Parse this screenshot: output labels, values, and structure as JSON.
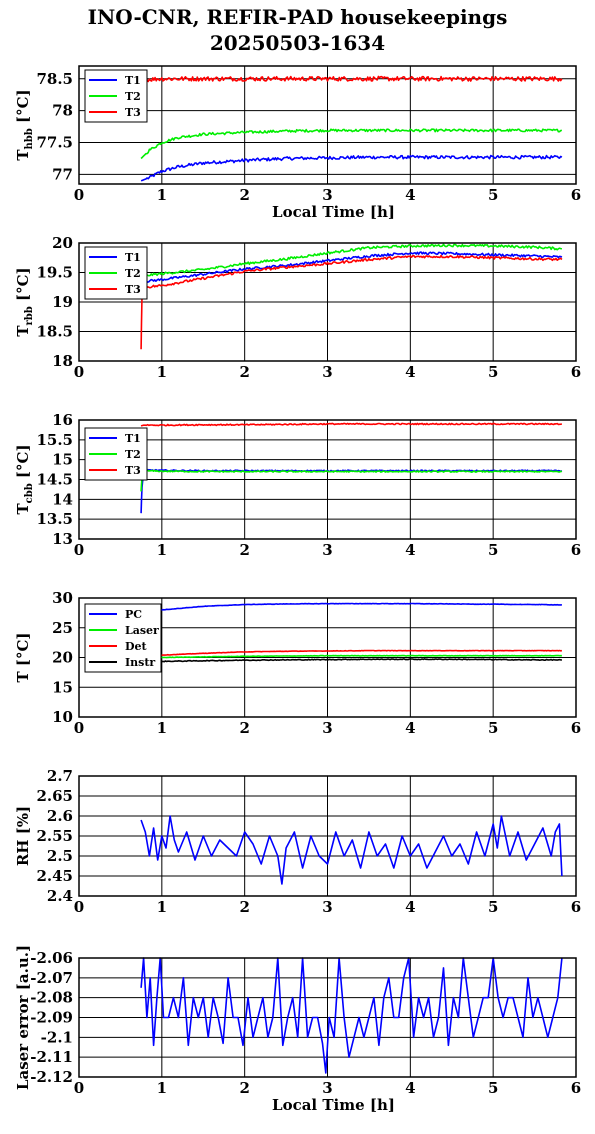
{
  "title_line1": "INO-CNR, REFIR-PAD housekeepings",
  "title_line2": "20250503-1634",
  "colors": {
    "blue": "#0000ff",
    "green": "#00ee00",
    "red": "#ff0000",
    "black": "#000000"
  },
  "chart_data": [
    {
      "type": "line",
      "ylabel_main": "T",
      "ylabel_sub": "hbb",
      "ylabel_unit": " [°C]",
      "xlabel": "Local Time [h]",
      "xlim": [
        0,
        6
      ],
      "ylim": [
        76.85,
        78.7
      ],
      "xticks": [
        0,
        1,
        2,
        3,
        4,
        5,
        6
      ],
      "yticks": [
        77,
        77.5,
        78,
        78.5
      ],
      "ytick_labels": [
        "77",
        "77.5",
        "78",
        "78.5"
      ],
      "x": [
        0.75,
        0.85,
        1.0,
        1.2,
        1.5,
        2.0,
        2.5,
        3.0,
        3.5,
        4.0,
        4.5,
        5.0,
        5.5,
        5.83
      ],
      "series": [
        {
          "name": "T1",
          "color": "#0000ff",
          "noise": 0.025,
          "values": [
            76.9,
            76.95,
            77.05,
            77.12,
            77.18,
            77.22,
            77.25,
            77.26,
            77.27,
            77.27,
            77.27,
            77.27,
            77.27,
            77.27
          ]
        },
        {
          "name": "T2",
          "color": "#00ee00",
          "noise": 0.02,
          "values": [
            77.25,
            77.38,
            77.5,
            77.58,
            77.63,
            77.66,
            77.68,
            77.69,
            77.69,
            77.69,
            77.69,
            77.69,
            77.69,
            77.69
          ]
        },
        {
          "name": "T3",
          "color": "#ff0000",
          "noise": 0.035,
          "values": [
            78.48,
            78.49,
            78.5,
            78.5,
            78.5,
            78.5,
            78.5,
            78.5,
            78.5,
            78.5,
            78.5,
            78.5,
            78.5,
            78.5
          ]
        }
      ]
    },
    {
      "type": "line",
      "ylabel_main": "T",
      "ylabel_sub": "rbb",
      "ylabel_unit": " [°C]",
      "xlabel": "",
      "xlim": [
        0,
        6
      ],
      "ylim": [
        18,
        20
      ],
      "xticks": [
        0,
        1,
        2,
        3,
        4,
        5,
        6
      ],
      "yticks": [
        18,
        18.5,
        19,
        19.5,
        20
      ],
      "ytick_labels": [
        "18",
        "18.5",
        "19",
        "19.5",
        "20"
      ],
      "x": [
        0.75,
        0.76,
        0.8,
        1.0,
        1.5,
        2.0,
        2.5,
        3.0,
        3.5,
        4.0,
        4.5,
        5.0,
        5.5,
        5.83
      ],
      "series": [
        {
          "name": "T1",
          "color": "#0000ff",
          "noise": 0.02,
          "values": [
            19.35,
            19.3,
            19.35,
            19.38,
            19.47,
            19.56,
            19.62,
            19.7,
            19.78,
            19.83,
            19.82,
            19.8,
            19.78,
            19.76
          ]
        },
        {
          "name": "T2",
          "color": "#00ee00",
          "noise": 0.02,
          "values": [
            19.4,
            19.45,
            19.45,
            19.48,
            19.55,
            19.65,
            19.73,
            19.83,
            19.92,
            19.95,
            19.96,
            19.95,
            19.93,
            19.9
          ]
        },
        {
          "name": "T3",
          "color": "#ff0000",
          "noise": 0.02,
          "values": [
            18.2,
            19.1,
            19.25,
            19.28,
            19.4,
            19.52,
            19.59,
            19.65,
            19.72,
            19.77,
            19.77,
            19.75,
            19.73,
            19.72
          ]
        }
      ]
    },
    {
      "type": "line",
      "ylabel_main": "T",
      "ylabel_sub": "cbb",
      "ylabel_unit": " [°C]",
      "xlabel": "",
      "xlim": [
        0,
        6
      ],
      "ylim": [
        13,
        16
      ],
      "xticks": [
        0,
        1,
        2,
        3,
        4,
        5,
        6
      ],
      "yticks": [
        13,
        13.5,
        14,
        14.5,
        15,
        15.5,
        16
      ],
      "ytick_labels": [
        "13",
        "13.5",
        "14",
        "14.5",
        "15",
        "15.5",
        "16"
      ],
      "x": [
        0.75,
        0.76,
        0.78,
        0.8,
        1.0,
        1.5,
        2.0,
        2.5,
        3.0,
        3.5,
        4.0,
        4.5,
        5.0,
        5.5,
        5.83
      ],
      "series": [
        {
          "name": "T1",
          "color": "#0000ff",
          "noise": 0.015,
          "values": [
            13.65,
            14.3,
            14.7,
            14.74,
            14.73,
            14.72,
            14.72,
            14.72,
            14.72,
            14.72,
            14.72,
            14.72,
            14.72,
            14.72,
            14.72
          ]
        },
        {
          "name": "T2",
          "color": "#00ee00",
          "noise": 0.015,
          "values": [
            14.2,
            14.55,
            14.7,
            14.72,
            14.71,
            14.7,
            14.7,
            14.7,
            14.7,
            14.7,
            14.7,
            14.7,
            14.7,
            14.7,
            14.7
          ]
        },
        {
          "name": "T3",
          "color": "#ff0000",
          "noise": 0.015,
          "values": [
            15.85,
            15.86,
            15.87,
            15.87,
            15.87,
            15.88,
            15.88,
            15.89,
            15.9,
            15.9,
            15.9,
            15.9,
            15.9,
            15.9,
            15.9
          ]
        }
      ]
    },
    {
      "type": "line",
      "ylabel_main": "T [°C]",
      "ylabel_sub": "",
      "ylabel_unit": "",
      "xlabel": "",
      "xlim": [
        0,
        6
      ],
      "ylim": [
        10,
        30
      ],
      "xticks": [
        0,
        1,
        2,
        3,
        4,
        5,
        6
      ],
      "yticks": [
        10,
        15,
        20,
        25,
        30
      ],
      "ytick_labels": [
        "10",
        "15",
        "20",
        "25",
        "30"
      ],
      "x": [
        0.75,
        1.0,
        1.5,
        2.0,
        2.5,
        3.0,
        3.5,
        4.0,
        4.5,
        5.0,
        5.5,
        5.83
      ],
      "series": [
        {
          "name": "PC",
          "color": "#0000ff",
          "noise": 0.03,
          "values": [
            27.5,
            28.0,
            28.6,
            28.9,
            29.0,
            29.05,
            29.05,
            29.05,
            29.0,
            28.95,
            28.9,
            28.85
          ]
        },
        {
          "name": "Laser",
          "color": "#00ee00",
          "noise": 0.03,
          "values": [
            19.9,
            20.0,
            20.1,
            20.2,
            20.25,
            20.3,
            20.3,
            20.3,
            20.3,
            20.3,
            20.3,
            20.3
          ]
        },
        {
          "name": "Det",
          "color": "#ff0000",
          "noise": 0.03,
          "values": [
            20.2,
            20.4,
            20.7,
            20.95,
            21.05,
            21.1,
            21.15,
            21.15,
            21.15,
            21.15,
            21.15,
            21.15
          ]
        },
        {
          "name": "Instr",
          "color": "#000000",
          "noise": 0.06,
          "values": [
            19.3,
            19.35,
            19.45,
            19.55,
            19.6,
            19.65,
            19.7,
            19.7,
            19.7,
            19.65,
            19.6,
            19.6
          ]
        }
      ]
    },
    {
      "type": "line",
      "ylabel_main": "RH [%]",
      "ylabel_sub": "",
      "ylabel_unit": "",
      "xlabel": "",
      "xlim": [
        0,
        6
      ],
      "ylim": [
        2.4,
        2.7
      ],
      "xticks": [
        0,
        1,
        2,
        3,
        4,
        5,
        6
      ],
      "yticks": [
        2.4,
        2.45,
        2.5,
        2.55,
        2.6,
        2.65,
        2.7
      ],
      "ytick_labels": [
        "2.4",
        "2.45",
        "2.5",
        "2.55",
        "2.6",
        "2.65",
        "2.7"
      ],
      "x": [
        0.75,
        0.8,
        0.85,
        0.9,
        0.95,
        1.0,
        1.05,
        1.1,
        1.15,
        1.2,
        1.3,
        1.4,
        1.5,
        1.6,
        1.7,
        1.8,
        1.9,
        2.0,
        2.1,
        2.2,
        2.3,
        2.4,
        2.45,
        2.5,
        2.6,
        2.7,
        2.8,
        2.9,
        3.0,
        3.1,
        3.2,
        3.3,
        3.4,
        3.5,
        3.6,
        3.7,
        3.8,
        3.9,
        4.0,
        4.1,
        4.2,
        4.3,
        4.4,
        4.5,
        4.6,
        4.7,
        4.8,
        4.9,
        5.0,
        5.05,
        5.1,
        5.2,
        5.3,
        5.4,
        5.5,
        5.6,
        5.7,
        5.75,
        5.8,
        5.83
      ],
      "series": [
        {
          "name": "RH",
          "color": "#0000ff",
          "noise": 0,
          "values": [
            2.59,
            2.56,
            2.5,
            2.57,
            2.49,
            2.55,
            2.52,
            2.6,
            2.54,
            2.51,
            2.56,
            2.49,
            2.55,
            2.5,
            2.54,
            2.52,
            2.5,
            2.56,
            2.53,
            2.48,
            2.55,
            2.5,
            2.43,
            2.52,
            2.56,
            2.47,
            2.55,
            2.5,
            2.48,
            2.56,
            2.5,
            2.54,
            2.47,
            2.56,
            2.5,
            2.53,
            2.47,
            2.55,
            2.5,
            2.53,
            2.47,
            2.51,
            2.55,
            2.5,
            2.53,
            2.48,
            2.56,
            2.5,
            2.58,
            2.52,
            2.6,
            2.5,
            2.56,
            2.49,
            2.53,
            2.57,
            2.5,
            2.56,
            2.58,
            2.45
          ]
        }
      ]
    },
    {
      "type": "line",
      "ylabel_main": "Laser error [a.u.]",
      "ylabel_sub": "",
      "ylabel_unit": "",
      "xlabel": "Local Time [h]",
      "xlim": [
        0,
        6
      ],
      "ylim": [
        -2.12,
        -2.06
      ],
      "xticks": [
        0,
        1,
        2,
        3,
        4,
        5,
        6
      ],
      "yticks": [
        -2.12,
        -2.11,
        -2.1,
        -2.09,
        -2.08,
        -2.07,
        -2.06
      ],
      "ytick_labels": [
        "-2.12",
        "-2.11",
        "-2.1",
        "-2.09",
        "-2.08",
        "-2.07",
        "-2.06"
      ],
      "x": [
        0.75,
        0.78,
        0.82,
        0.86,
        0.9,
        0.94,
        0.98,
        1.02,
        1.08,
        1.14,
        1.2,
        1.26,
        1.32,
        1.38,
        1.44,
        1.5,
        1.56,
        1.62,
        1.68,
        1.74,
        1.8,
        1.86,
        1.92,
        1.98,
        2.04,
        2.1,
        2.16,
        2.22,
        2.28,
        2.34,
        2.4,
        2.46,
        2.52,
        2.58,
        2.64,
        2.7,
        2.76,
        2.82,
        2.88,
        2.94,
        2.98,
        3.02,
        3.08,
        3.14,
        3.2,
        3.26,
        3.32,
        3.38,
        3.44,
        3.5,
        3.56,
        3.62,
        3.68,
        3.74,
        3.8,
        3.86,
        3.92,
        3.98,
        4.04,
        4.1,
        4.16,
        4.22,
        4.28,
        4.34,
        4.4,
        4.46,
        4.52,
        4.58,
        4.64,
        4.7,
        4.76,
        4.82,
        4.88,
        4.94,
        5.0,
        5.06,
        5.12,
        5.18,
        5.24,
        5.3,
        5.36,
        5.42,
        5.48,
        5.54,
        5.6,
        5.66,
        5.72,
        5.78,
        5.83
      ],
      "series": [
        {
          "name": "Laser",
          "color": "#0000ff",
          "noise": 0,
          "values": [
            -2.075,
            -2.06,
            -2.09,
            -2.07,
            -2.104,
            -2.08,
            -2.06,
            -2.09,
            -2.09,
            -2.08,
            -2.09,
            -2.07,
            -2.104,
            -2.08,
            -2.09,
            -2.08,
            -2.1,
            -2.08,
            -2.09,
            -2.103,
            -2.07,
            -2.09,
            -2.09,
            -2.104,
            -2.08,
            -2.1,
            -2.09,
            -2.08,
            -2.1,
            -2.09,
            -2.06,
            -2.104,
            -2.09,
            -2.08,
            -2.1,
            -2.06,
            -2.1,
            -2.09,
            -2.09,
            -2.103,
            -2.118,
            -2.09,
            -2.1,
            -2.06,
            -2.09,
            -2.11,
            -2.1,
            -2.09,
            -2.1,
            -2.09,
            -2.08,
            -2.104,
            -2.08,
            -2.07,
            -2.09,
            -2.09,
            -2.07,
            -2.06,
            -2.1,
            -2.08,
            -2.09,
            -2.08,
            -2.1,
            -2.09,
            -2.065,
            -2.104,
            -2.08,
            -2.09,
            -2.06,
            -2.08,
            -2.1,
            -2.09,
            -2.08,
            -2.08,
            -2.06,
            -2.08,
            -2.09,
            -2.08,
            -2.08,
            -2.09,
            -2.1,
            -2.07,
            -2.09,
            -2.08,
            -2.09,
            -2.1,
            -2.09,
            -2.08,
            -2.06
          ]
        }
      ]
    }
  ]
}
